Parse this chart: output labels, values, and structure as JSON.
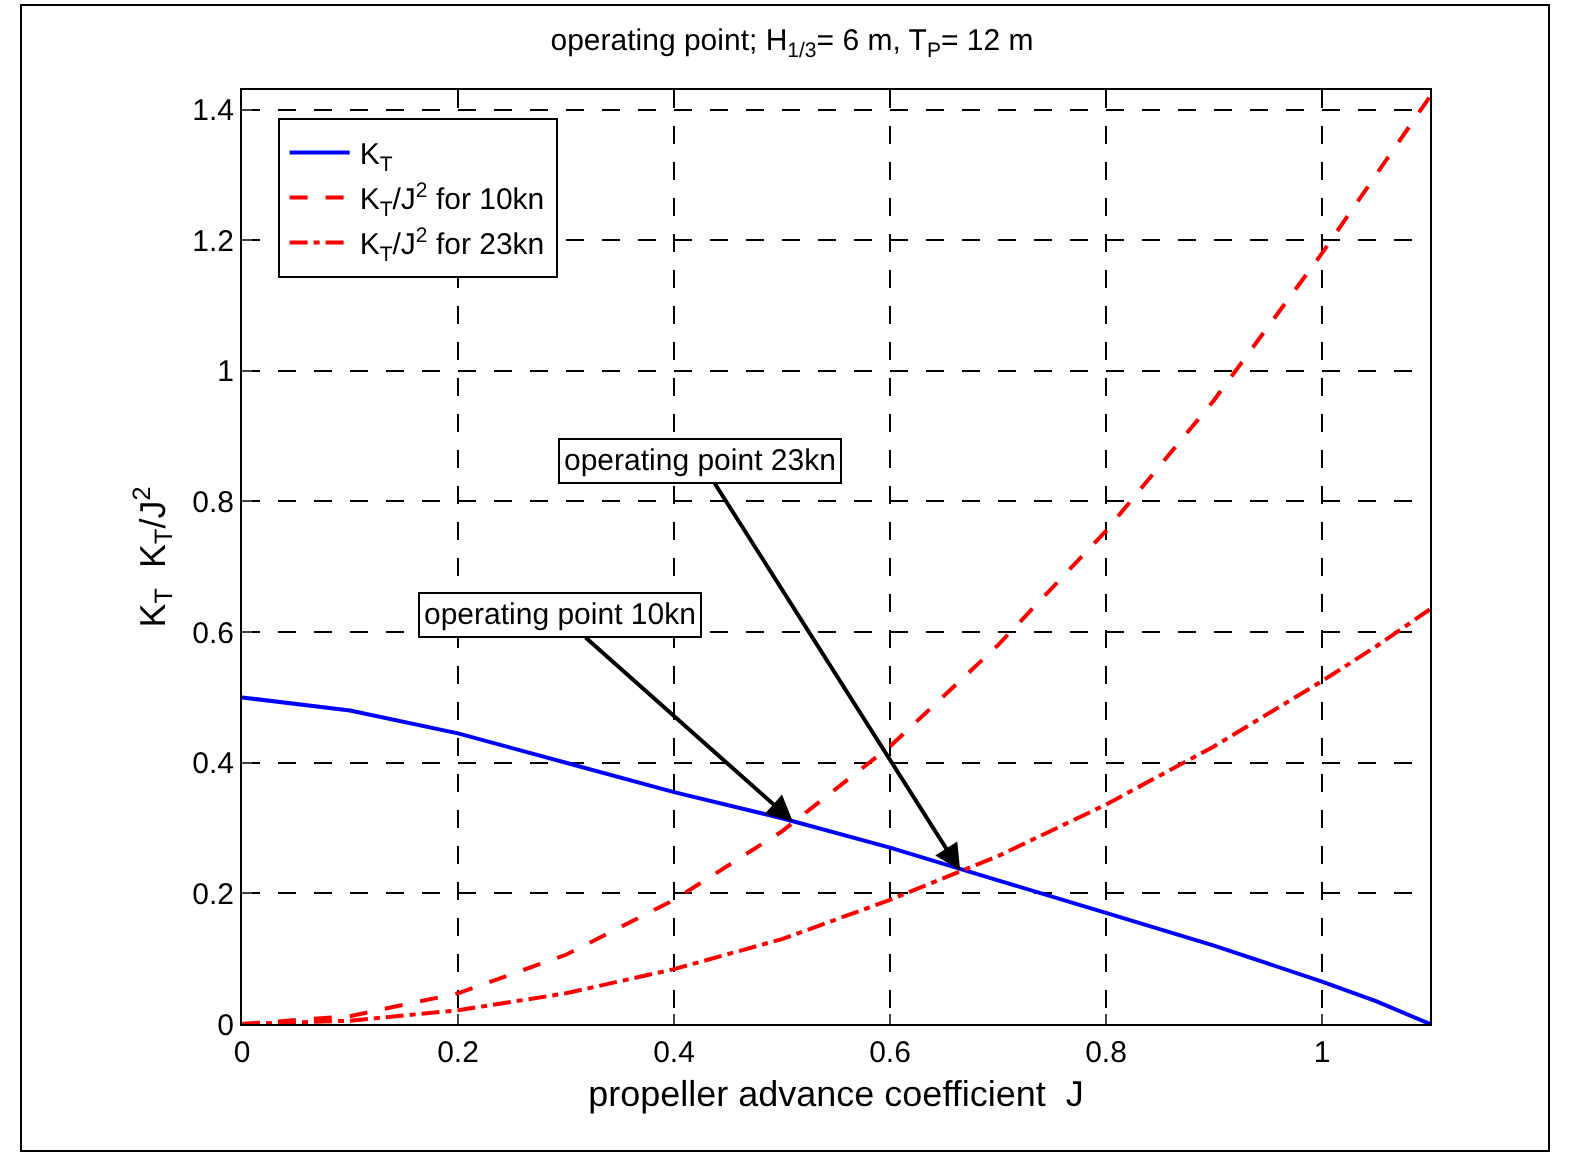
{
  "chart_data": {
    "type": "line",
    "title": "operating point; H$_{1/3}$= 6 m, T$_{P}$= 12 m",
    "xlabel": "propeller advance coefficient  J",
    "ylabel": "K$_{T}$  K$_{T}$/J$^{2}$",
    "x": [
      0,
      0.1,
      0.2,
      0.3,
      0.4,
      0.5,
      0.6,
      0.7,
      0.8,
      0.9,
      1.0,
      1.05,
      1.1
    ],
    "series": [
      {
        "name": "K$_{T}$",
        "color": "#0000ff",
        "line_style": "solid",
        "values": [
          0.5,
          0.48,
          0.445,
          0.4,
          0.355,
          0.315,
          0.27,
          0.22,
          0.17,
          0.12,
          0.065,
          0.035,
          0.0
        ]
      },
      {
        "name": "K$_{T}$/J$^{2}$ for 10kn",
        "color": "#ff0000",
        "line_style": "dashed",
        "values": [
          0.0,
          0.012,
          0.047,
          0.106,
          0.19,
          0.295,
          0.425,
          0.58,
          0.755,
          0.955,
          1.18,
          1.3,
          1.42
        ]
      },
      {
        "name": "K$_{T}$/J$^{2}$ for 23kn",
        "color": "#ff0000",
        "line_style": "dashdot",
        "values": [
          0.0,
          0.005,
          0.021,
          0.047,
          0.084,
          0.13,
          0.19,
          0.257,
          0.336,
          0.425,
          0.525,
          0.578,
          0.635
        ]
      }
    ],
    "xlim": [
      0,
      1.1
    ],
    "xticks": [
      0,
      0.2,
      0.4,
      0.6,
      0.8,
      1
    ],
    "ylim": [
      0,
      1.43
    ],
    "yticks": [
      0,
      0.2,
      0.4,
      0.6,
      0.8,
      1,
      1.2,
      1.4
    ],
    "grid": true,
    "legend": "top left",
    "marker": "none",
    "annotations": [
      {
        "text": "operating point 10kn",
        "x": 0.51,
        "y": 0.31
      },
      {
        "text": "operating point 23kn",
        "x": 0.665,
        "y": 0.235
      }
    ]
  }
}
